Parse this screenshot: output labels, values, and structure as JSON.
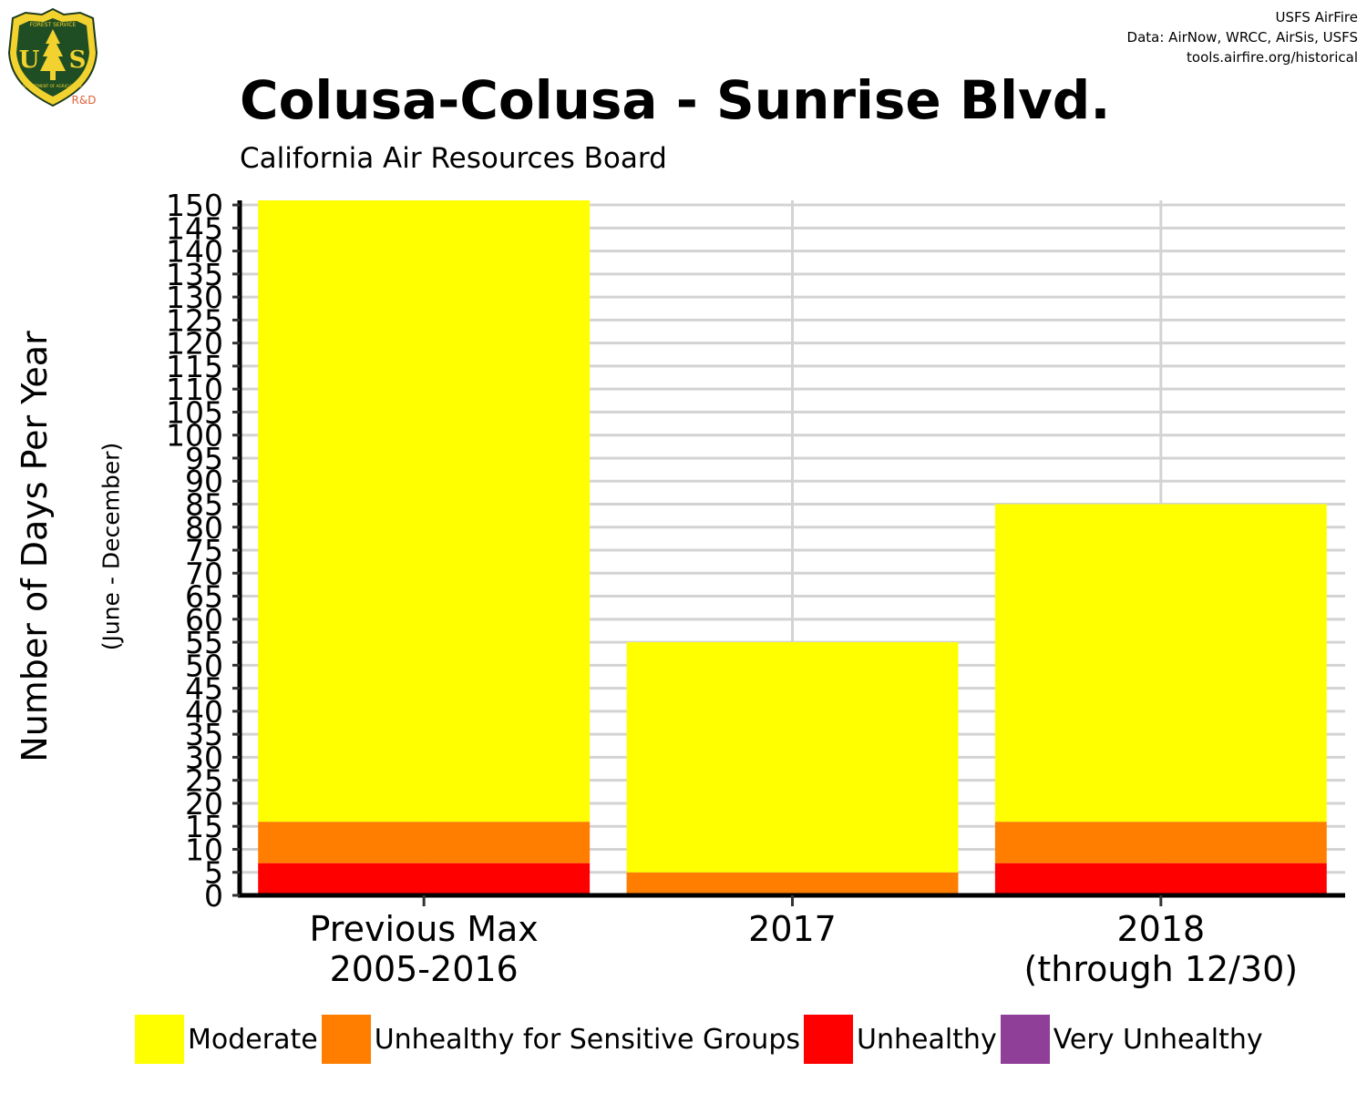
{
  "logo": {
    "name": "usfs-shield-logo",
    "top_text": "FOREST SERVICE",
    "left_letter": "U",
    "right_letter": "S",
    "bottom_text": "DEPARTMENT OF AGRICULTURE",
    "rd_text": "R&D",
    "rd_color": "#e0623a"
  },
  "credits": {
    "line1": "USFS AirFire",
    "line2": "Data: AirNow, WRCC, AirSis, USFS",
    "line3": "tools.airfire.org/historical"
  },
  "chart_data": {
    "type": "bar",
    "stacked": true,
    "title": "Colusa-Colusa - Sunrise Blvd.",
    "subtitle": "California Air Resources Board",
    "ylabel": "Number of Days Per Year",
    "ylabel_sub": "(June - December)",
    "categories": [
      "Previous Max\n2005-2016",
      "2017",
      "2018\n(through 12/30)"
    ],
    "series": [
      {
        "name": "Unhealthy",
        "color": "#ff0000",
        "values": [
          7,
          0,
          7
        ]
      },
      {
        "name": "Unhealthy for Sensitive Groups",
        "color": "#ff7e00",
        "values": [
          9,
          5,
          9
        ]
      },
      {
        "name": "Moderate",
        "color": "#ffff00",
        "values": [
          135,
          50,
          69
        ]
      },
      {
        "name": "Very Unhealthy",
        "color": "#8f3f97",
        "values": [
          0,
          0,
          0
        ]
      }
    ],
    "ylim": [
      0,
      151
    ],
    "yticks": [
      0,
      5,
      10,
      15,
      20,
      25,
      30,
      35,
      40,
      45,
      50,
      55,
      60,
      65,
      70,
      75,
      80,
      85,
      90,
      95,
      100,
      105,
      110,
      115,
      120,
      125,
      130,
      135,
      140,
      145,
      150
    ],
    "grid": true,
    "legend_position": "bottom",
    "legend_order": [
      "Moderate",
      "Unhealthy for Sensitive Groups",
      "Unhealthy",
      "Very Unhealthy"
    ]
  }
}
